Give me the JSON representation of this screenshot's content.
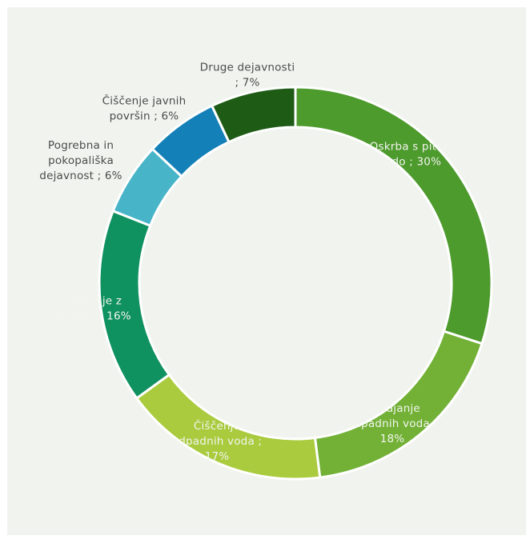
{
  "chart_data": {
    "type": "pie",
    "donut": true,
    "title": "",
    "slices": [
      {
        "label": "Oskrba s pitno vodo",
        "value": 30,
        "display": "Oskrba s pitno\nvodo ; 30%",
        "color": "#4d9a2d"
      },
      {
        "label": "Odvajanje odpadnih voda",
        "value": 18,
        "display": "Odvajanje\nodpadnih voda ;\n18%",
        "color": "#72b136"
      },
      {
        "label": "Čiščenje odpadnih voda",
        "value": 17,
        "display": "Čiščenje\nodpadnih voda ;\n17%",
        "color": "#a9cb3d"
      },
      {
        "label": "Ravnanje z odpadki",
        "value": 16,
        "display": "Ravnanje z\nodpadki ; 16%",
        "color": "#0f9160"
      },
      {
        "label": "Pogrebna in pokopališka dejavnost",
        "value": 6,
        "display": "Pogrebna in\npokopališka\ndejavnost ; 6%",
        "color": "#47b4c8"
      },
      {
        "label": "Čiščenje javnih površin",
        "value": 6,
        "display": "Čiščenje javnih\npovršin ; 6%",
        "color": "#1480b8"
      },
      {
        "label": "Druge dejavnosti",
        "value": 7,
        "display": "Druge dejavnosti\n; 7%",
        "color": "#1e5c16"
      }
    ]
  }
}
